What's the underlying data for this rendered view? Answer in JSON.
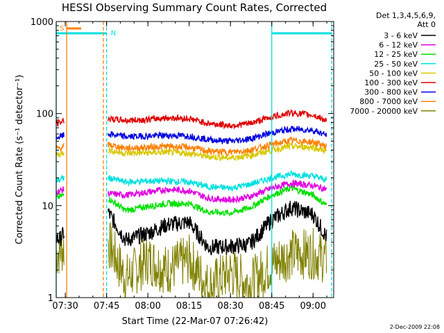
{
  "title": "HESSI Observing Summary Count Rates, Corrected",
  "footer": "2-Dec-2009 22:08",
  "legend": {
    "header": [
      "Det 1,3,4,5,6,9,",
      "Att 0"
    ],
    "entries": [
      {
        "label": "3 - 6 keV",
        "color": "#000000"
      },
      {
        "label": "6 - 12 keV",
        "color": "#e000e0"
      },
      {
        "label": "12 - 25 keV",
        "color": "#00e000"
      },
      {
        "label": "25 - 50 keV",
        "color": "#00e0e0"
      },
      {
        "label": "50 - 100 keV",
        "color": "#d8c800"
      },
      {
        "label": "100 - 300 keV",
        "color": "#e00000"
      },
      {
        "label": "300 - 800 keV",
        "color": "#0000e0"
      },
      {
        "label": "800 - 7000 keV",
        "color": "#ff8000"
      },
      {
        "label": "7000 - 20000 keV",
        "color": "#808000"
      }
    ]
  },
  "chart_data": {
    "type": "line",
    "title": "HESSI Observing Summary Count Rates, Corrected",
    "xlabel": "Start Time (22-Mar-07 07:26:42)",
    "ylabel": "Corrected Count Rate (s⁻¹ detector⁻¹)",
    "yscale": "log",
    "ylim": [
      1,
      1000
    ],
    "xlim": [
      "07:26:42",
      "09:07:30"
    ],
    "x_ticks": [
      "07:30",
      "07:45",
      "08:00",
      "08:15",
      "08:30",
      "08:45",
      "09:00"
    ],
    "y_ticks": [
      "1",
      "10",
      "100",
      "1000"
    ],
    "flag_labels": {
      "saa": "S",
      "night": "N"
    },
    "saa_interval": [
      "07:30:30",
      "07:35:45"
    ],
    "night_intervals": [
      [
        "07:26:42",
        "07:45:00"
      ],
      [
        "08:45:00",
        "09:06:45"
      ]
    ],
    "orange_vertical_lines": {
      "solid": "07:30:30",
      "dashed": "07:43:50"
    },
    "cyan_vertical_lines": {
      "solid": [
        "07:26:42",
        "08:45:00"
      ],
      "dashed": [
        "07:45:00",
        "09:06:45"
      ]
    },
    "series": [
      {
        "name": "7000 - 20000 keV",
        "color": "#808000",
        "x": [
          "07:26:42",
          "07:28:00",
          "07:29:30",
          "07:45:30",
          "07:52:00",
          "08:00:00",
          "08:07:00",
          "08:15:00",
          "08:22:00",
          "08:30:00",
          "08:37:00",
          "08:45:00",
          "08:52:00",
          "09:00:00",
          "09:05:00"
        ],
        "values": [
          3.0,
          3.2,
          3.5,
          4.0,
          1.6,
          2.6,
          2.0,
          2.6,
          1.3,
          1.9,
          1.4,
          2.3,
          3.0,
          3.0,
          2.6
        ]
      },
      {
        "name": "3 - 6 keV",
        "color": "#000000",
        "x": [
          "07:26:42",
          "07:28:00",
          "07:29:30",
          "07:45:30",
          "07:52:00",
          "08:00:00",
          "08:07:00",
          "08:15:00",
          "08:22:00",
          "08:30:00",
          "08:37:00",
          "08:45:00",
          "08:52:00",
          "09:00:00",
          "09:05:00"
        ],
        "values": [
          4.5,
          4.3,
          5.0,
          8.5,
          4.2,
          5.0,
          6.2,
          6.6,
          3.5,
          3.6,
          3.8,
          7.0,
          9.5,
          8.0,
          4.5
        ]
      },
      {
        "name": "12 - 25 keV",
        "color": "#00e000",
        "x": [
          "07:26:42",
          "07:28:00",
          "07:29:30",
          "07:45:30",
          "07:52:00",
          "08:00:00",
          "08:07:00",
          "08:15:00",
          "08:22:00",
          "08:30:00",
          "08:37:00",
          "08:45:00",
          "08:52:00",
          "09:00:00",
          "09:05:00"
        ],
        "values": [
          12.0,
          12.5,
          13.0,
          12.0,
          8.8,
          9.8,
          10.5,
          10.5,
          8.5,
          8.3,
          9.5,
          13.0,
          15.5,
          13.0,
          10.0
        ]
      },
      {
        "name": "6 - 12 keV",
        "color": "#e000e0",
        "x": [
          "07:26:42",
          "07:28:00",
          "07:29:30",
          "07:45:30",
          "07:52:00",
          "08:00:00",
          "08:07:00",
          "08:15:00",
          "08:22:00",
          "08:30:00",
          "08:37:00",
          "08:45:00",
          "08:52:00",
          "09:00:00",
          "09:05:00"
        ],
        "values": [
          14.0,
          14.5,
          15.0,
          13.5,
          13.0,
          14.0,
          15.0,
          14.5,
          12.0,
          11.5,
          12.5,
          15.5,
          17.5,
          16.5,
          15.0
        ]
      },
      {
        "name": "25 - 50 keV",
        "color": "#00e0e0",
        "x": [
          "07:26:42",
          "07:28:00",
          "07:29:30",
          "07:45:30",
          "07:52:00",
          "08:00:00",
          "08:07:00",
          "08:15:00",
          "08:22:00",
          "08:30:00",
          "08:37:00",
          "08:45:00",
          "08:52:00",
          "09:00:00",
          "09:05:00"
        ],
        "values": [
          19.0,
          19.0,
          20.0,
          20.0,
          18.0,
          18.5,
          18.5,
          18.0,
          16.0,
          15.5,
          17.0,
          20.0,
          22.0,
          21.0,
          19.0
        ]
      },
      {
        "name": "50 - 100 keV",
        "color": "#d8c800",
        "x": [
          "07:26:42",
          "07:28:00",
          "07:29:30",
          "07:45:30",
          "07:52:00",
          "08:00:00",
          "08:07:00",
          "08:15:00",
          "08:22:00",
          "08:30:00",
          "08:37:00",
          "08:45:00",
          "08:52:00",
          "09:00:00",
          "09:05:00"
        ],
        "values": [
          36.0,
          36.0,
          38.0,
          40.0,
          37.0,
          37.5,
          38.0,
          37.0,
          34.0,
          33.0,
          35.0,
          40.0,
          44.0,
          43.0,
          39.0
        ]
      },
      {
        "name": "800 - 7000 keV",
        "color": "#ff8000",
        "x": [
          "07:26:42",
          "07:28:00",
          "07:29:30",
          "07:45:30",
          "07:52:00",
          "08:00:00",
          "08:07:00",
          "08:15:00",
          "08:22:00",
          "08:30:00",
          "08:37:00",
          "08:45:00",
          "08:52:00",
          "09:00:00",
          "09:05:00"
        ],
        "values": [
          42.0,
          42.0,
          44.0,
          46.0,
          42.0,
          43.0,
          44.0,
          43.0,
          39.0,
          38.0,
          40.0,
          46.0,
          51.0,
          49.0,
          44.0
        ]
      },
      {
        "name": "300 - 800 keV",
        "color": "#0000e0",
        "x": [
          "07:26:42",
          "07:28:00",
          "07:29:30",
          "07:45:30",
          "07:52:00",
          "08:00:00",
          "08:07:00",
          "08:15:00",
          "08:22:00",
          "08:30:00",
          "08:37:00",
          "08:45:00",
          "08:52:00",
          "09:00:00",
          "09:05:00"
        ],
        "values": [
          55.0,
          56.0,
          58.0,
          60.0,
          56.0,
          57.0,
          58.0,
          57.0,
          52.0,
          50.0,
          53.0,
          62.0,
          68.0,
          66.0,
          58.0
        ]
      },
      {
        "name": "100 - 300 keV",
        "color": "#e00000",
        "x": [
          "07:26:42",
          "07:28:00",
          "07:29:30",
          "07:45:30",
          "07:52:00",
          "08:00:00",
          "08:07:00",
          "08:15:00",
          "08:22:00",
          "08:30:00",
          "08:37:00",
          "08:45:00",
          "08:52:00",
          "09:00:00",
          "09:05:00"
        ],
        "values": [
          78.0,
          80.0,
          84.0,
          88.0,
          84.0,
          86.0,
          90.0,
          88.0,
          78.0,
          74.0,
          78.0,
          92.0,
          102.0,
          96.0,
          84.0
        ]
      }
    ]
  }
}
